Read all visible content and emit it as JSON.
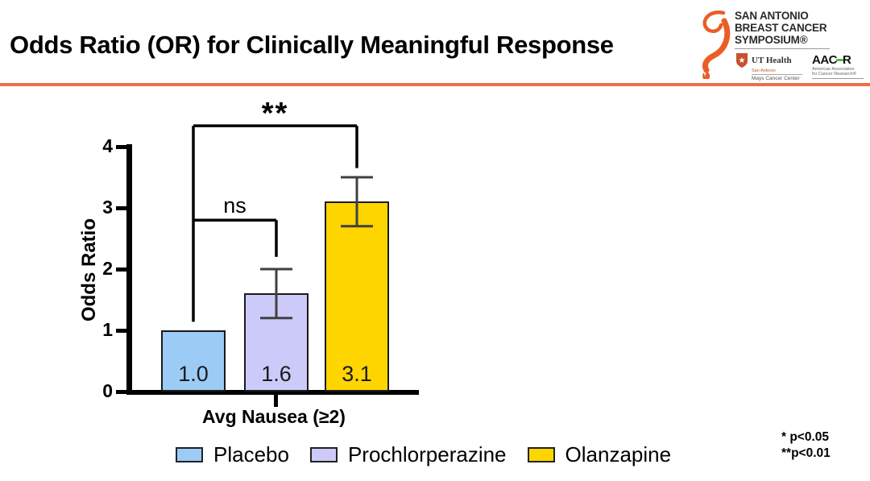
{
  "slide": {
    "title": "Odds Ratio (OR) for Clinically Meaningful Response",
    "accent_color": "#EE6C48"
  },
  "logo": {
    "ribbon_color": "#E95E26",
    "symposium_lines": [
      "SAN ANTONIO",
      "BREAST CANCER",
      "SYMPOSIUM®"
    ],
    "ut_health": {
      "name": "UT Health",
      "subtitle": "San Antonio",
      "division": "Mays Cancer Center",
      "shield_color": "#C8502E"
    },
    "aacr": {
      "part1": "AAC",
      "part2": "R",
      "green": "#5CB848",
      "subtitle_line1": "American Association",
      "subtitle_line2": "for Cancer Research®"
    }
  },
  "chart_data": {
    "type": "bar",
    "title": "",
    "xlabel": "Avg Nausea (≥2)",
    "ylabel": "Odds Ratio",
    "ylim": [
      0,
      4
    ],
    "yticks": [
      0,
      1,
      2,
      3,
      4
    ],
    "grid": false,
    "categories": [
      "Placebo",
      "Prochlorperazine",
      "Olanzapine"
    ],
    "values": [
      1.0,
      1.6,
      3.1
    ],
    "bar_labels": [
      "1.0",
      "1.6",
      "3.1"
    ],
    "bar_colors": [
      "#9CCBF6",
      "#CCCAF8",
      "#FFD500"
    ],
    "error_bar_color": "#404040",
    "error_bars": [
      null,
      {
        "low": 1.2,
        "high": 2.0
      },
      {
        "low": 2.7,
        "high": 3.5
      }
    ],
    "significance": [
      {
        "label": "ns",
        "bar1": 0,
        "bar2": 1,
        "y": 2.8,
        "drop1_to": null,
        "drop2_to": 2.2
      },
      {
        "label": "**",
        "bar1": 0,
        "bar2": 2,
        "y": 4.34,
        "drop1_to": 1.14,
        "drop2_to": 3.65
      }
    ],
    "legend_position": "bottom",
    "legend": [
      {
        "label": "Placebo",
        "color": "#9CCBF6"
      },
      {
        "label": "Prochlorperazine",
        "color": "#CCCAF8"
      },
      {
        "label": "Olanzapine",
        "color": "#FFD500"
      }
    ]
  },
  "footnote": {
    "line1": "* p<0.05",
    "line2": "**p<0.01"
  }
}
